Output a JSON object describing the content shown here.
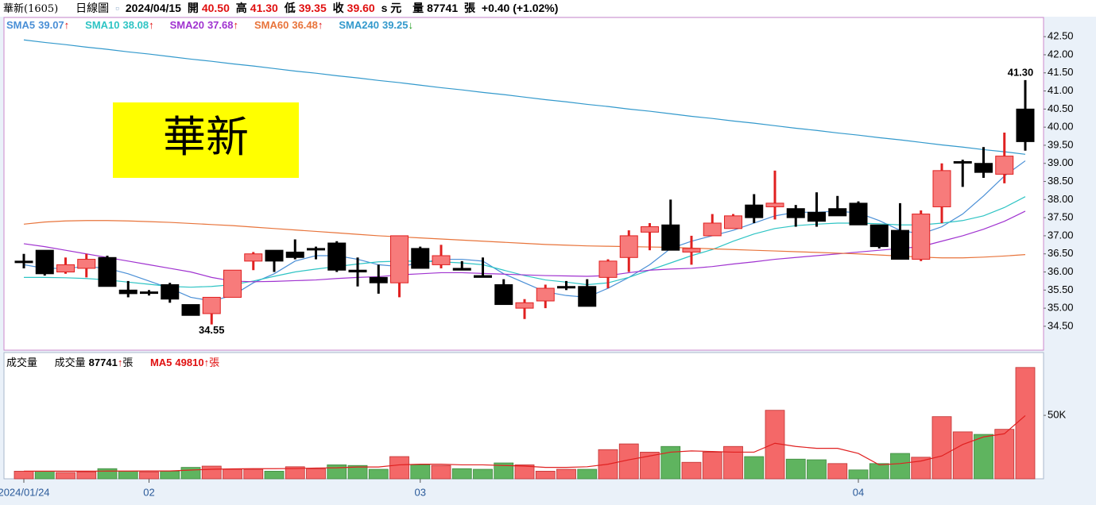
{
  "chart_data": {
    "type": "candlestick",
    "header": {
      "name": "華新(1605)",
      "period": "日線圖",
      "date": "2024/04/15",
      "open_label": "開",
      "open": "40.50",
      "high_label": "高",
      "high": "41.30",
      "low_label": "低",
      "low": "39.35",
      "close_label": "收",
      "close": "39.60",
      "unit": "s 元",
      "volume_label": "量",
      "volume": "87741",
      "volume_unit": "張",
      "change": "+0.40 (+1.02%)"
    },
    "watermark": "華新",
    "categories": [
      "2024/01/24",
      null,
      null,
      null,
      null,
      null,
      "02",
      null,
      null,
      null,
      null,
      null,
      null,
      null,
      null,
      null,
      null,
      null,
      null,
      "03",
      null,
      null,
      null,
      null,
      null,
      null,
      null,
      null,
      null,
      null,
      null,
      null,
      null,
      null,
      null,
      null,
      null,
      null,
      null,
      null,
      "04",
      null,
      null,
      null,
      null,
      null,
      null,
      null,
      null
    ],
    "open": [
      36.3,
      36.6,
      36.0,
      36.1,
      36.4,
      35.5,
      35.45,
      35.65,
      35.1,
      34.85,
      35.3,
      36.3,
      36.6,
      36.55,
      36.65,
      36.8,
      36.05,
      35.85,
      35.7,
      36.65,
      36.2,
      36.1,
      35.9,
      35.65,
      35.0,
      35.2,
      35.6,
      35.6,
      35.85,
      36.4,
      37.1,
      37.3,
      36.55,
      37.0,
      37.2,
      37.85,
      37.8,
      37.75,
      37.65,
      37.75,
      37.9,
      37.3,
      37.15,
      36.35,
      37.8,
      39.05,
      39.0,
      38.7,
      40.5
    ],
    "high": [
      36.5,
      36.6,
      36.4,
      36.5,
      36.45,
      35.75,
      35.5,
      35.7,
      35.1,
      35.3,
      36.05,
      36.55,
      36.6,
      36.9,
      36.7,
      36.85,
      36.4,
      36.2,
      37.0,
      36.7,
      36.75,
      36.3,
      36.4,
      35.8,
      35.25,
      35.65,
      35.75,
      35.8,
      36.35,
      37.15,
      37.35,
      38.0,
      37.0,
      37.6,
      37.6,
      38.15,
      38.8,
      37.85,
      38.2,
      38.1,
      37.95,
      37.3,
      37.9,
      37.7,
      39.0,
      39.1,
      39.45,
      39.85,
      41.3
    ],
    "low": [
      36.1,
      35.9,
      35.95,
      35.85,
      35.6,
      35.3,
      35.35,
      35.15,
      34.8,
      34.55,
      35.3,
      36.05,
      36.0,
      36.35,
      36.35,
      36.0,
      35.6,
      35.4,
      35.3,
      36.1,
      36.1,
      36.05,
      35.85,
      35.1,
      34.7,
      35.0,
      35.5,
      35.05,
      35.55,
      36.0,
      36.6,
      36.6,
      36.2,
      37.0,
      37.2,
      37.35,
      37.45,
      37.25,
      37.25,
      37.55,
      37.3,
      36.65,
      36.35,
      36.3,
      37.35,
      38.35,
      38.6,
      38.45,
      39.35
    ],
    "close": [
      36.3,
      35.95,
      36.2,
      36.35,
      35.6,
      35.4,
      35.45,
      35.25,
      34.8,
      35.3,
      36.05,
      36.5,
      36.3,
      36.4,
      36.65,
      36.05,
      36.0,
      35.7,
      37.0,
      36.1,
      36.45,
      36.05,
      35.85,
      35.1,
      35.15,
      35.55,
      35.6,
      35.05,
      36.3,
      37.0,
      37.25,
      36.6,
      36.65,
      37.35,
      37.55,
      37.5,
      37.9,
      37.5,
      37.4,
      37.55,
      37.3,
      36.7,
      36.35,
      37.6,
      38.8,
      39.05,
      38.75,
      39.2,
      39.6
    ],
    "high_label": "41.30",
    "low_label": "34.55",
    "up_color": "#f77b7b",
    "up_edge": "#e02020",
    "down_color": "#000000",
    "ylim": [
      33.84,
      43.03
    ],
    "yticks": [
      {
        "value": 34.5,
        "label": "34.50"
      },
      {
        "value": 35,
        "label": "35.00"
      },
      {
        "value": 35.5,
        "label": "35.50"
      },
      {
        "value": 36,
        "label": "36.00"
      },
      {
        "value": 36.5,
        "label": "36.50"
      },
      {
        "value": 37,
        "label": "37.00"
      },
      {
        "value": 37.5,
        "label": "37.50"
      },
      {
        "value": 38,
        "label": "38.00"
      },
      {
        "value": 38.5,
        "label": "38.50"
      },
      {
        "value": 39,
        "label": "39.00"
      },
      {
        "value": 39.5,
        "label": "39.50"
      },
      {
        "value": 40,
        "label": "40.00"
      },
      {
        "value": 40.5,
        "label": "40.50"
      },
      {
        "value": 41,
        "label": "41.00"
      },
      {
        "value": 41.5,
        "label": "41.50"
      },
      {
        "value": 42,
        "label": "42.00"
      },
      {
        "value": 42.5,
        "label": "42.50"
      }
    ],
    "series": [
      {
        "name": "SMA5",
        "color": "#4a8fd6",
        "legend_value": "39.07",
        "trend": "↑",
        "trend_color": "#e01010",
        "values": [
          36.2,
          36.1,
          36.1,
          36.15,
          36.1,
          35.95,
          35.75,
          35.55,
          35.3,
          35.2,
          35.35,
          35.7,
          35.95,
          36.3,
          36.45,
          36.45,
          36.35,
          36.2,
          36.15,
          36.25,
          36.35,
          36.35,
          36.3,
          35.95,
          35.7,
          35.45,
          35.35,
          35.3,
          35.55,
          35.85,
          36.2,
          36.65,
          36.85,
          37.0,
          37.15,
          37.35,
          37.55,
          37.65,
          37.65,
          37.68,
          37.63,
          37.42,
          37.15,
          37.05,
          37.25,
          37.6,
          38.1,
          38.65,
          39.07
        ]
      },
      {
        "name": "SMA10",
        "color": "#2ec4c4",
        "legend_value": "38.08",
        "trend": "↑",
        "trend_color": "#e01010",
        "values": [
          35.85,
          35.85,
          35.84,
          35.82,
          35.78,
          35.72,
          35.66,
          35.6,
          35.58,
          35.6,
          35.65,
          35.75,
          35.88,
          36.0,
          36.08,
          36.15,
          36.22,
          36.28,
          36.3,
          36.3,
          36.28,
          36.25,
          36.2,
          36.05,
          35.9,
          35.78,
          35.72,
          35.65,
          35.7,
          35.85,
          36.05,
          36.25,
          36.45,
          36.62,
          36.85,
          37.05,
          37.2,
          37.28,
          37.32,
          37.35,
          37.35,
          37.33,
          37.3,
          37.3,
          37.35,
          37.42,
          37.55,
          37.78,
          38.08
        ]
      },
      {
        "name": "SMA20",
        "color": "#a033d0",
        "legend_value": "37.68",
        "trend": "↑",
        "trend_color": "#e01010",
        "values": [
          36.78,
          36.7,
          36.6,
          36.5,
          36.4,
          36.3,
          36.2,
          36.1,
          36.0,
          35.85,
          35.75,
          35.73,
          35.74,
          35.76,
          35.78,
          35.82,
          35.85,
          35.87,
          35.92,
          35.95,
          35.98,
          35.98,
          35.96,
          35.94,
          35.92,
          35.9,
          35.89,
          35.88,
          35.9,
          35.98,
          36.05,
          36.08,
          36.1,
          36.15,
          36.22,
          36.28,
          36.35,
          36.4,
          36.45,
          36.5,
          36.55,
          36.6,
          36.65,
          36.7,
          36.85,
          37.0,
          37.18,
          37.4,
          37.68
        ]
      },
      {
        "name": "SMA60",
        "color": "#e8743b",
        "legend_value": "36.48",
        "trend": "↑",
        "trend_color": "#e01010",
        "values": [
          37.32,
          37.38,
          37.41,
          37.42,
          37.42,
          37.41,
          37.39,
          37.37,
          37.34,
          37.31,
          37.28,
          37.24,
          37.2,
          37.16,
          37.12,
          37.08,
          37.04,
          37.0,
          36.97,
          36.94,
          36.91,
          36.88,
          36.85,
          36.82,
          36.79,
          36.76,
          36.74,
          36.72,
          36.71,
          36.7,
          36.69,
          36.68,
          36.66,
          36.64,
          36.62,
          36.6,
          36.58,
          36.56,
          36.54,
          36.52,
          36.5,
          36.47,
          36.44,
          36.41,
          36.39,
          36.39,
          36.41,
          36.44,
          36.48
        ]
      },
      {
        "name": "SMA240",
        "color": "#3399cc",
        "legend_value": "39.25",
        "trend": "↓",
        "trend_color": "#1a9a1a",
        "values": [
          42.41,
          42.34,
          42.28,
          42.21,
          42.15,
          42.08,
          42.02,
          41.95,
          41.88,
          41.82,
          41.75,
          41.69,
          41.62,
          41.55,
          41.49,
          41.42,
          41.36,
          41.29,
          41.23,
          41.16,
          41.09,
          41.03,
          40.96,
          40.9,
          40.83,
          40.76,
          40.7,
          40.63,
          40.57,
          40.5,
          40.44,
          40.37,
          40.3,
          40.24,
          40.17,
          40.11,
          40.04,
          39.97,
          39.91,
          39.84,
          39.78,
          39.71,
          39.65,
          39.58,
          39.51,
          39.45,
          39.38,
          39.32,
          39.25
        ]
      }
    ],
    "volume_title": "成交量",
    "volume": [
      6000,
      6000,
      5000,
      5500,
      8000,
      6000,
      5500,
      6000,
      9000,
      10000,
      7500,
      7500,
      6000,
      9500,
      8000,
      11000,
      10500,
      7500,
      17500,
      11000,
      10500,
      8000,
      7500,
      12500,
      11000,
      6000,
      7500,
      7500,
      23000,
      27500,
      21000,
      25500,
      13000,
      21000,
      25500,
      17500,
      54000,
      15500,
      15000,
      12000,
      7000,
      12000,
      20000,
      17000,
      49000,
      37000,
      35000,
      39000,
      87741
    ],
    "volume_ma": {
      "name": "MA5",
      "color": "#e02020",
      "legend_value": "49810",
      "trend": "↑",
      "unit": "張",
      "values": [
        6000,
        6000,
        6000,
        6000,
        6100,
        6100,
        6200,
        6200,
        6900,
        7500,
        7800,
        8000,
        8000,
        8100,
        8500,
        8700,
        9300,
        9300,
        11000,
        11500,
        11500,
        11000,
        11000,
        10500,
        10000,
        9000,
        9000,
        9500,
        11500,
        15000,
        18000,
        21000,
        22000,
        21500,
        21000,
        21000,
        28000,
        25500,
        24000,
        24000,
        20000,
        11000,
        12000,
        14000,
        18000,
        27000,
        33000,
        35500,
        49810
      ]
    },
    "volume_legend": {
      "name": "成交量",
      "value": "87741",
      "trend": "↑",
      "unit": "張"
    },
    "volume_up_color": "#f46868",
    "volume_down_color": "#5fb45f",
    "volume_ylim": [
      0,
      97000
    ],
    "volume_yticks": [
      {
        "value": 50000,
        "label": "50K"
      }
    ]
  }
}
